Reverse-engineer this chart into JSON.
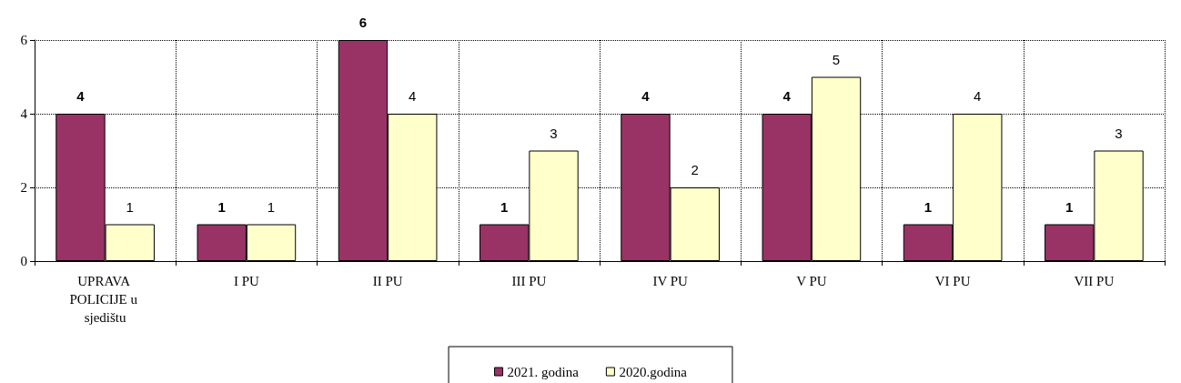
{
  "chart_data": {
    "type": "bar",
    "categories": [
      "UPRAVA POLICIJE u sjedištu",
      "I PU",
      "II PU",
      "III PU",
      "IV PU",
      "V PU",
      "VI PU",
      "VII PU"
    ],
    "series": [
      {
        "name": "2021. godina",
        "color": "#993366",
        "values": [
          4,
          1,
          6,
          1,
          4,
          4,
          1,
          1
        ]
      },
      {
        "name": "2020.godina",
        "color": "#ffffcc",
        "values": [
          1,
          1,
          4,
          3,
          2,
          5,
          4,
          3
        ]
      }
    ],
    "ylim": [
      0,
      6
    ],
    "yticks": [
      0,
      2,
      4,
      6
    ],
    "grid": true,
    "legend": "bottom",
    "data_labels": true
  }
}
